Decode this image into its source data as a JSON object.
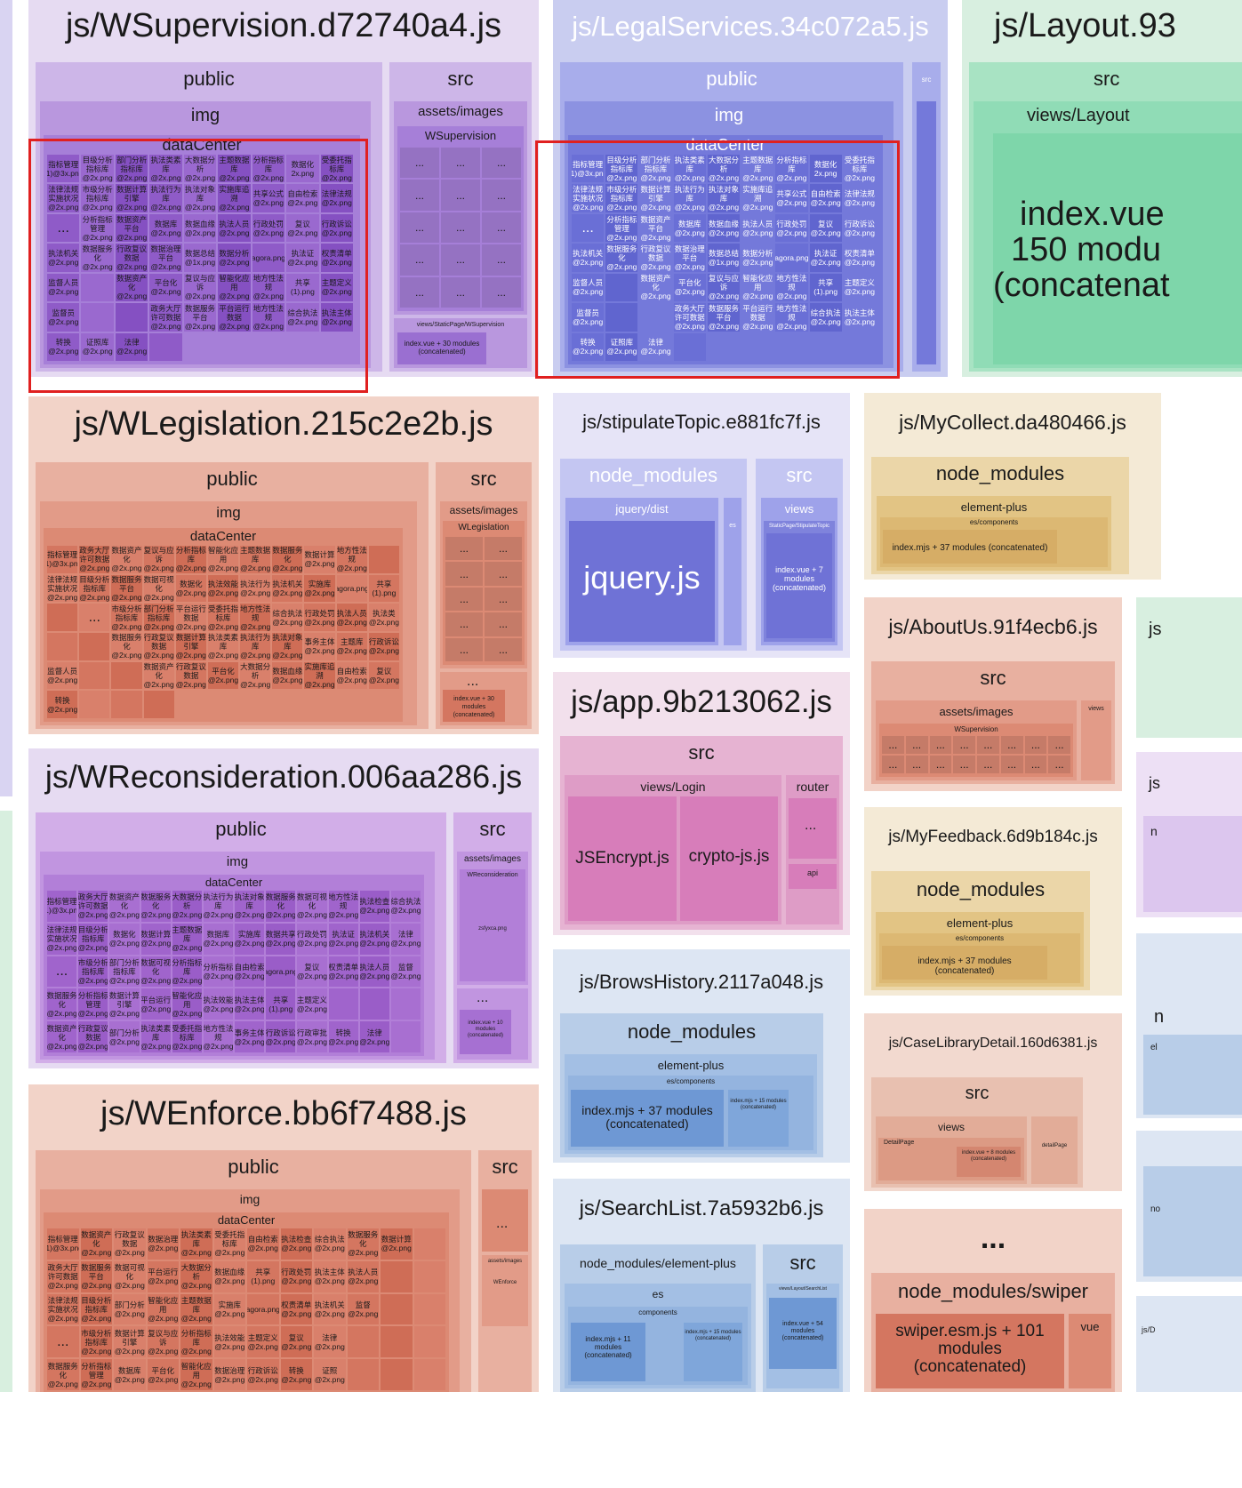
{
  "chart_data": {
    "type": "treemap",
    "chunks": [
      {
        "name": "js/WSupervision.d72740a4.js",
        "children": [
          "public",
          "src"
        ]
      },
      {
        "name": "js/LegalServices.34c072a5.js",
        "children": [
          "public",
          "src"
        ]
      },
      {
        "name": "js/Layout.93",
        "children": [
          "src"
        ]
      },
      {
        "name": "js/WLegislation.215c2e2b.js",
        "children": [
          "public",
          "src"
        ]
      },
      {
        "name": "js/stipulateTopic.e881fc7f.js",
        "children": [
          "node_modules",
          "src"
        ]
      },
      {
        "name": "js/MyCollect.da480466.js",
        "children": [
          "node_modules"
        ]
      },
      {
        "name": "js/WReconsideration.006aa286.js",
        "children": [
          "public",
          "src"
        ]
      },
      {
        "name": "js/app.9b213062.js",
        "children": [
          "src"
        ]
      },
      {
        "name": "js/AboutUs.91f4ecb6.js",
        "children": [
          "src"
        ]
      },
      {
        "name": "js/MyFeedback.6d9b184c.js",
        "children": [
          "node_modules"
        ]
      },
      {
        "name": "js/BrowsHistory.2117a048.js",
        "children": [
          "node_modules"
        ]
      },
      {
        "name": "js/CaseLibraryDetail.160d6381.js",
        "children": [
          "src"
        ]
      },
      {
        "name": "js/WEnforce.bb6f7488.js",
        "children": [
          "public",
          "src"
        ]
      },
      {
        "name": "js/SearchList.7a5932b6.js",
        "children": [
          "node_modules/element-plus",
          "src"
        ]
      }
    ]
  },
  "labels": {
    "wsup": {
      "title": "js/WSupervision.d72740a4.js",
      "public": "public",
      "img": "img",
      "dataCenter": "dataCenter",
      "src": "src",
      "assets": "assets/images",
      "folder": "WSupervision",
      "views": "views/StaticPage/WSupervision",
      "index": "index.vue + 30 modules (concatenated)"
    },
    "legal": {
      "title": "js/LegalServices.34c072a5.js",
      "public": "public",
      "img": "img",
      "dataCenter": "dataCenter",
      "src": "src"
    },
    "layout": {
      "title": "js/Layout.93",
      "src": "src",
      "views": "views/Layout",
      "index1": "index.vue",
      "index2": "150 modu",
      "index3": "(concatenat"
    },
    "wleg": {
      "title": "js/WLegislation.215c2e2b.js",
      "public": "public",
      "img": "img",
      "dataCenter": "dataCenter",
      "src": "src",
      "assets": "assets/images",
      "folder": "WLegislation",
      "index": "index.vue + 30 modules (concatenated)"
    },
    "stip": {
      "title": "js/stipulateTopic.e881fc7f.js",
      "nm": "node_modules",
      "jqdist": "jquery/dist",
      "jquery": "jquery.js",
      "es": "es",
      "src": "src",
      "views": "views",
      "static": "StaticPage/StipulateTopic",
      "index": "index.vue + 7 modules (concatenated)"
    },
    "mycollect": {
      "title": "js/MyCollect.da480466.js",
      "nm": "node_modules",
      "ep": "element-plus",
      "esc": "es/components",
      "index": "index.mjs + 37 modules (concatenated)"
    },
    "wrec": {
      "title": "js/WReconsideration.006aa286.js",
      "public": "public",
      "img": "img",
      "dataCenter": "dataCenter",
      "src": "src",
      "assets": "assets/images",
      "folder": "WReconsideration",
      "zsf": "zsfyxca.png",
      "index": "index.vue + 10 modules (concatenated)"
    },
    "app": {
      "title": "js/app.9b213062.js",
      "src": "src",
      "login": "views/Login",
      "jsencrypt": "JSEncrypt.js",
      "crypto": "crypto-js.js",
      "router": "router",
      "api": "api"
    },
    "about": {
      "title": "js/AboutUs.91f4ecb6.js",
      "src": "src",
      "assets": "assets/images",
      "folder": "WSupervision",
      "views": "views"
    },
    "feedback": {
      "title": "js/MyFeedback.6d9b184c.js",
      "nm": "node_modules",
      "ep": "element-plus",
      "esc": "es/components",
      "index": "index.mjs + 37 modules (concatenated)"
    },
    "brows": {
      "title": "js/BrowsHistory.2117a048.js",
      "nm": "node_modules",
      "ep": "element-plus",
      "esc": "es/components",
      "index": "index.mjs + 37 modules (concatenated)",
      "index2": "index.mjs + 15 modules (concatenated)"
    },
    "case": {
      "title": "js/CaseLibraryDetail.160d6381.js",
      "src": "src",
      "views": "views",
      "detail": "DetailPage",
      "detail2": "detailPage",
      "index": "index.vue + 8 modules (concatenated)"
    },
    "wenf": {
      "title": "js/WEnforce.bb6f7488.js",
      "public": "public",
      "img": "img",
      "dataCenter": "dataCenter",
      "src": "src",
      "assets": "assets/images",
      "folder": "WEnforce"
    },
    "search": {
      "title": "js/SearchList.7a5932b6.js",
      "nm": "node_modules/element-plus",
      "es": "es",
      "comp": "components",
      "index": "index.mjs + 11 modules (concatenated)",
      "index2": "index.mjs + 15 modules (concatenated)",
      "src": "src",
      "views": "views/Layout/SearchList",
      "index3": "index.vue + 54 modules (concatenated)"
    },
    "more": {
      "title": "...",
      "swiper": "node_modules/swiper",
      "swiperjs": "swiper.esm.js + 101 modules (concatenated)",
      "vue": "vue"
    },
    "ellipsis": "...",
    "edge": {
      "js": "js",
      "n": "n",
      "no": "no",
      "jsD": "js/D",
      "el": "el"
    }
  },
  "files": {
    "wsup": [
      "指标管理(1)@3x.png",
      "目级分析指标库@2x.png",
      "部门分析指标库@2x.png",
      "执法类素库@2x.png",
      "大数据分析@2x.png",
      "主题数据库@2x.png",
      "分析指标库@2x.png",
      "数据化2x.png",
      "受委托指标库@2x.png",
      "法律法规实施状况@2x.png",
      "市级分析指标库@2x.png",
      "数据计算引擎@2x.png",
      "执法行为库@2x.png",
      "执法对象库@2x.png",
      "实施库追溯@2x.png",
      "共享公式@2x.png",
      "自由检索@2x.png",
      "法律法规@2x.png",
      "...",
      "分析指标管理@2x.png",
      "数据资产平台@2x.png",
      "数据库@2x.png",
      "数据血缘@2x.png",
      "执法人员@2x.png",
      "行政处罚@2x.png",
      "复议@2x.png",
      "行政诉讼@2x.png",
      "执法机关@2x.png",
      "数据服务化@2x.png",
      "行政复议数据@2x.png",
      "数据治理平台@2x.png",
      "数据总结@1x.png",
      "数据分析@2x.png",
      "agora.png",
      "执法证@2x.png",
      "权责清单@2x.png",
      "监督人员@2x.png",
      "",
      "数据资产化@2x.png",
      "平台化@2x.png",
      "复议与应诉@2x.png",
      "智能化应用@2x.png",
      "地方性法规@2x.png",
      "共享(1).png",
      "主题定义@2x.png",
      "监督员@2x.png",
      "",
      "",
      "政务大厅许可数据@2x.png",
      "数据服务平台@2x.png",
      "平台运行数据@2x.png",
      "地方性法规@2x.png",
      "综合执法@2x.png",
      "执法主体@2x.png",
      "转换@2x.png",
      "证照库@2x.png",
      "法律@2x.png",
      ""
    ],
    "legal": [
      "指标管理(1)@3x.png",
      "目级分析指标库@2x.png",
      "部门分析指标库@2x.png",
      "执法类素库@2x.png",
      "大数据分析@2x.png",
      "主题数据库@2x.png",
      "分析指标库@2x.png",
      "数据化2x.png",
      "受委托指标库@2x.png",
      "法律法规实施状况@2x.png",
      "市级分析指标库@2x.png",
      "数据计算引擎@2x.png",
      "执法行为库@2x.png",
      "执法对象库@2x.png",
      "实施库追溯@2x.png",
      "共享公式@2x.png",
      "自由检索@2x.png",
      "法律法规@2x.png",
      "...",
      "分析指标管理@2x.png",
      "数据资产平台@2x.png",
      "数据库@2x.png",
      "数据血缘@2x.png",
      "执法人员@2x.png",
      "行政处罚@2x.png",
      "复议@2x.png",
      "行政诉讼@2x.png",
      "执法机关@2x.png",
      "数据服务化@2x.png",
      "行政复议数据@2x.png",
      "数据治理平台@2x.png",
      "数据总结@1x.png",
      "数据分析@2x.png",
      "agora.png",
      "执法证@2x.png",
      "权责清单@2x.png",
      "监督人员@2x.png",
      "",
      "数据资产化@2x.png",
      "平台化@2x.png",
      "复议与应诉@2x.png",
      "智能化应用@2x.png",
      "地方性法规@2x.png",
      "共享(1).png",
      "主题定义@2x.png",
      "监督员@2x.png",
      "",
      "",
      "政务大厅许可数据@2x.png",
      "数据服务平台@2x.png",
      "平台运行数据@2x.png",
      "地方性法规@2x.png",
      "综合执法@2x.png",
      "执法主体@2x.png",
      "转换@2x.png",
      "证照库@2x.png",
      "法律@2x.png",
      ""
    ],
    "wleg": [
      "指标管理(1)@3x.png",
      "政务大厅许可数据@2x.png",
      "数据资产化@2x.png",
      "复议与应诉@2x.png",
      "分析指标库@2x.png",
      "智能化应用@2x.png",
      "主题数据库@2x.png",
      "数据服务化@2x.png",
      "数据计算@2x.png",
      "地方性法规@2x.png",
      "",
      "法律法规实施状况@2x.png",
      "目级分析指标库@2x.png",
      "数据服务平台@2x.png",
      "数据可视化@2x.png",
      "数据化@2x.png",
      "执法效能@2x.png",
      "执法行为@2x.png",
      "执法机关@2x.png",
      "实施库@2x.png",
      "agora.png",
      "共享(1).png",
      "",
      "...",
      "市级分析指标库@2x.png",
      "部门分析指标库@2x.png",
      "平台运行数据@2x.png",
      "受委托指标库@2x.png",
      "地方性法规@2x.png",
      "综合执法@2x.png",
      "行政处罚@2x.png",
      "执法人员@2x.png",
      "执法类@2x.png",
      "",
      "",
      "数据服务化@2x.png",
      "行政复议数据@2x.png",
      "数据计算引擎@2x.png",
      "执法类素库@2x.png",
      "执法行为库@2x.png",
      "执法对象库@2x.png",
      "事务主体@2x.png",
      "主题库@2x.png",
      "行政诉讼@2x.png",
      "监督人员@2x.png",
      "",
      "",
      "数据资产化@2x.png",
      "行政复议数据@2x.png",
      "平台化@2x.png",
      "大数据分析@2x.png",
      "数据血缘@2x.png",
      "实施库追溯@2x.png",
      "自由检索@2x.png",
      "复议@2x.png",
      "转换@2x.png",
      "",
      "",
      ""
    ],
    "wrec": [
      "指标管理(1)@3x.png",
      "政务大厅许可数据@2x.png",
      "数据资产化@2x.png",
      "数据服务化@2x.png",
      "大数据分析@2x.png",
      "执法行为库@2x.png",
      "执法对象库@2x.png",
      "数据服务化@2x.png",
      "数据可视化@2x.png",
      "地方性法规@2x.png",
      "执法检查@2x.png",
      "综合执法@2x.png",
      "法律法规实施状况@2x.png",
      "目级分析指标库@2x.png",
      "数据化@2x.png",
      "数据计算@2x.png",
      "主题数据库@2x.png",
      "数据库@2x.png",
      "实施库@2x.png",
      "数据共享@2x.png",
      "行政处罚@2x.png",
      "执法证@2x.png",
      "执法机关@2x.png",
      "法律@2x.png",
      "...",
      "市级分析指标库@2x.png",
      "部门分析指标库@2x.png",
      "数据可视化@2x.png",
      "分析指标库@2x.png",
      "分析指标@2x.png",
      "自由检索@2x.png",
      "agora.png",
      "复议@2x.png",
      "权责清单@2x.png",
      "执法人员@2x.png",
      "监督@2x.png",
      "数据服务化@2x.png",
      "分析指标管理@2x.png",
      "数据计算引擎@2x.png",
      "平台运行@2x.png",
      "智能化应用@2x.png",
      "执法效能@2x.png",
      "执法主体@2x.png",
      "共享(1).png",
      "主题定义@2x.png",
      "",
      "",
      "",
      "数据资产化@2x.png",
      "行政复议数据@2x.png",
      "部门分析@2x.png",
      "执法类素库@2x.png",
      "受委托指标库@2x.png",
      "地方性法规@2x.png",
      "事务主体@2x.png",
      "行政诉讼@2x.png",
      "行政审批@2x.png",
      "转换@2x.png",
      "法律@2x.png",
      ""
    ],
    "wenf": [
      "指标管理(1)@3x.png",
      "数据资产化@2x.png",
      "行政复议数据@2x.png",
      "数据治理@2x.png",
      "执法类素库@2x.png",
      "受委托指标库@2x.png",
      "自由检索@2x.png",
      "执法检查@2x.png",
      "综合执法@2x.png",
      "数据服务化@2x.png",
      "数据计算@2x.png",
      "",
      "政务大厅许可数据@2x.png",
      "数据服务平台@2x.png",
      "数据可视化@2x.png",
      "平台运行@2x.png",
      "大数据分析@2x.png",
      "数据血缘@2x.png",
      "共享(1).png",
      "行政处罚@2x.png",
      "执法主体@2x.png",
      "执法人员@2x.png",
      "",
      "",
      "法律法规实施状况@2x.png",
      "目级分析指标库@2x.png",
      "部门分析@2x.png",
      "智能化应用@2x.png",
      "主题数据库@2x.png",
      "实施库@2x.png",
      "agora.png",
      "权责清单@2x.png",
      "执法机关@2x.png",
      "监督@2x.png",
      "",
      "",
      "...",
      "市级分析指标库@2x.png",
      "数据计算引擎@2x.png",
      "复议与应诉@2x.png",
      "分析指标库@2x.png",
      "执法效能@2x.png",
      "主题定义@2x.png",
      "复议@2x.png",
      "法律@2x.png",
      "",
      "",
      "",
      "数据服务化@2x.png",
      "分析指标管理@2x.png",
      "数据库@2x.png",
      "平台化@2x.png",
      "智能化应用@2x.png",
      "数据治理@2x.png",
      "行政诉讼@2x.png",
      "转换@2x.png",
      "证照@2x.png",
      "",
      "",
      ""
    ]
  },
  "colors": {
    "purple_bg": "#e4d8f0",
    "purple_1": "#c8b0e6",
    "purple_2": "#b48fdc",
    "purple_3": "#a073d2",
    "purple_cell": "#8f5bc8",
    "blue_bg": "#c9cdf0",
    "blue_1": "#a7acea",
    "blue_2": "#8990e0",
    "blue_cell": "#6a6fd6",
    "green_bg": "#d8efe0",
    "green_1": "#a7e3c3",
    "green_2": "#7ed6aa",
    "salmon_bg": "#f2d3c8",
    "salmon_1": "#e6a998",
    "salmon_2": "#df927e",
    "salmon_cell": "#d47660",
    "lav_bg": "#e7e4f7",
    "lav_1": "#c4c6f2",
    "lav_2": "#6f72d6",
    "tan_bg": "#f4ead6",
    "tan_1": "#ebd6a8",
    "tan_2": "#e2c484",
    "tan_3": "#d6ad66",
    "pink_bg": "#f2e0ec",
    "pink_1": "#e6b3d2",
    "pink_2": "#d77dba",
    "lblue_bg": "#dde6f3",
    "lblue_1": "#b8cde8",
    "lblue_2": "#94b4df",
    "lblue_3": "#6e98d4",
    "red_box": "#e02020"
  }
}
